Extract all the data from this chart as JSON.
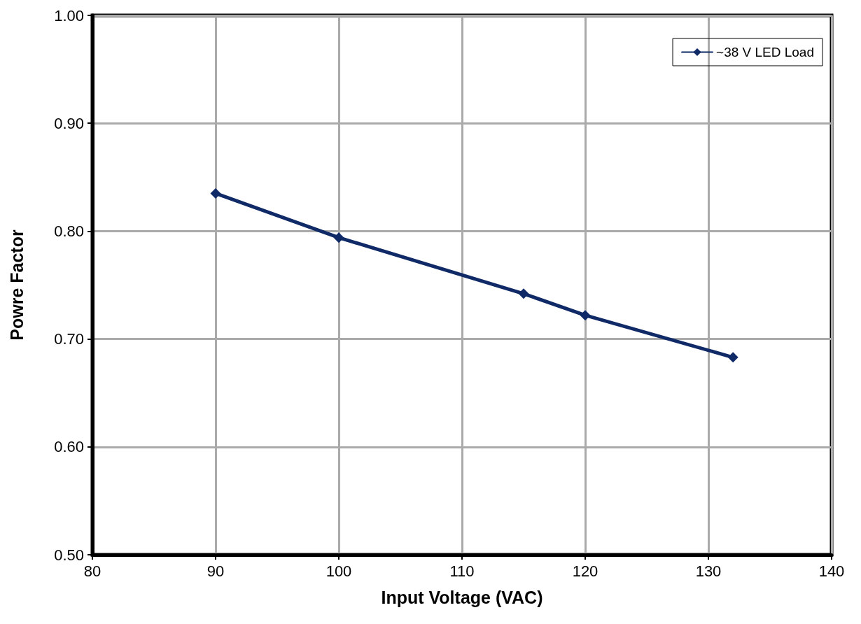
{
  "chart_data": {
    "type": "line",
    "xlabel": "Input Voltage (VAC)",
    "ylabel": "Powre Factor",
    "x": [
      90,
      100,
      115,
      120,
      132
    ],
    "series": [
      {
        "name": "~38 V LED Load",
        "color": "#0f2a66",
        "values": [
          0.835,
          0.794,
          0.742,
          0.722,
          0.683
        ]
      }
    ],
    "xlim": [
      80,
      140
    ],
    "xticks": [
      80,
      90,
      100,
      110,
      120,
      130,
      140
    ],
    "ylim": [
      0.5,
      1.0
    ],
    "yticks": [
      {
        "value": 0.5,
        "label": "0.50"
      },
      {
        "value": 0.6,
        "label": "0.60"
      },
      {
        "value": 0.7,
        "label": "0.70"
      },
      {
        "value": 0.8,
        "label": "0.80"
      },
      {
        "value": 0.9,
        "label": "0.90"
      },
      {
        "value": 1.0,
        "label": "1.00"
      }
    ],
    "grid": true,
    "legend": "top right",
    "marker": "diamond",
    "line_style": "solid"
  }
}
